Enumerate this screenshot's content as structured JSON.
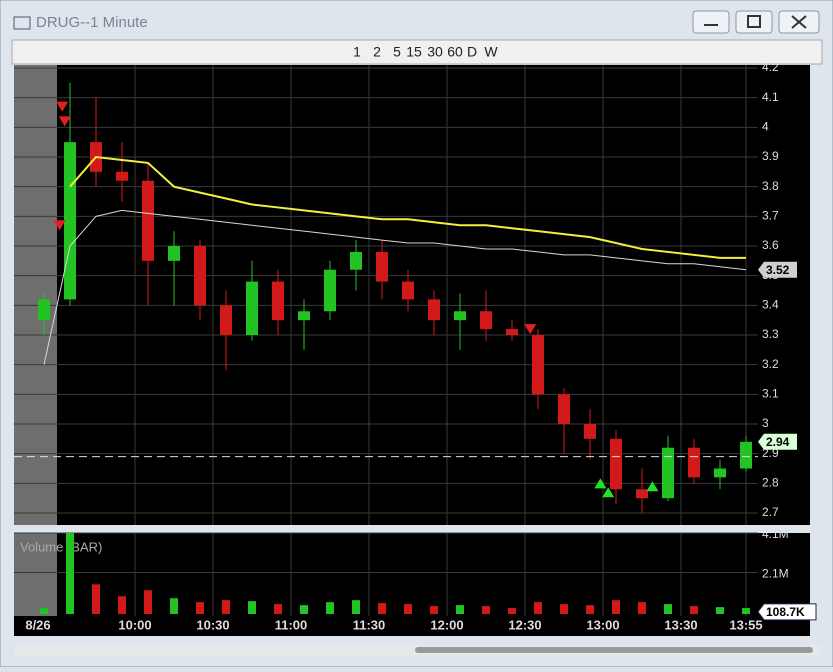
{
  "window": {
    "title": "DRUG--1 Minute"
  },
  "toolbar": {
    "periods": [
      "1",
      "2",
      "5",
      "15",
      "30",
      "60",
      "D",
      "W"
    ]
  },
  "chart": {
    "type": "candlestick",
    "x": [
      "9:20",
      "9:30",
      "9:40",
      "9:50",
      "10:00",
      "10:10",
      "10:20",
      "10:30",
      "10:40",
      "10:50",
      "11:00",
      "11:10",
      "11:20",
      "11:30",
      "11:40",
      "11:50",
      "12:00",
      "12:10",
      "12:20",
      "12:30",
      "12:40",
      "12:50",
      "13:00",
      "13:10",
      "13:20",
      "13:30",
      "13:40",
      "13:50"
    ],
    "open": [
      3.35,
      3.42,
      3.95,
      3.85,
      3.82,
      3.55,
      3.6,
      3.4,
      3.3,
      3.48,
      3.35,
      3.38,
      3.52,
      3.58,
      3.48,
      3.42,
      3.35,
      3.38,
      3.32,
      3.3,
      3.1,
      3.0,
      2.95,
      2.78,
      2.75,
      2.92,
      2.82,
      2.85
    ],
    "high": [
      3.45,
      4.15,
      4.1,
      3.95,
      3.88,
      3.65,
      3.62,
      3.45,
      3.55,
      3.52,
      3.42,
      3.55,
      3.62,
      3.62,
      3.52,
      3.45,
      3.44,
      3.45,
      3.35,
      3.32,
      3.12,
      3.05,
      2.98,
      2.85,
      2.96,
      2.95,
      2.88,
      2.96
    ],
    "low": [
      3.3,
      3.4,
      3.8,
      3.75,
      3.4,
      3.4,
      3.35,
      3.18,
      3.28,
      3.3,
      3.25,
      3.35,
      3.45,
      3.42,
      3.38,
      3.3,
      3.25,
      3.28,
      3.28,
      3.05,
      2.9,
      2.88,
      2.73,
      2.7,
      2.74,
      2.8,
      2.78,
      2.84
    ],
    "close": [
      3.42,
      3.95,
      3.85,
      3.82,
      3.55,
      3.6,
      3.4,
      3.3,
      3.48,
      3.35,
      3.38,
      3.52,
      3.58,
      3.48,
      3.42,
      3.35,
      3.38,
      3.32,
      3.3,
      3.1,
      3.0,
      2.95,
      2.78,
      2.75,
      2.92,
      2.82,
      2.85,
      2.94
    ],
    "up_color": "#22c322",
    "down_color": "#d21a1a",
    "lines": [
      {
        "color": "#f0f040",
        "values": [
          null,
          3.8,
          3.9,
          3.89,
          3.88,
          3.8,
          3.78,
          3.76,
          3.74,
          3.73,
          3.72,
          3.71,
          3.7,
          3.69,
          3.69,
          3.68,
          3.67,
          3.67,
          3.66,
          3.65,
          3.64,
          3.63,
          3.61,
          3.59,
          3.58,
          3.57,
          3.56,
          3.56
        ]
      },
      {
        "color": "#d8d8d8",
        "values": [
          3.2,
          3.6,
          3.7,
          3.72,
          3.71,
          3.7,
          3.69,
          3.68,
          3.67,
          3.66,
          3.65,
          3.64,
          3.63,
          3.62,
          3.61,
          3.61,
          3.6,
          3.59,
          3.59,
          3.58,
          3.57,
          3.57,
          3.56,
          3.55,
          3.54,
          3.54,
          3.53,
          3.52
        ]
      }
    ],
    "sell_signals": [
      {
        "x": "9:31",
        "price": 3.67
      },
      {
        "x": "9:32",
        "price": 4.07
      },
      {
        "x": "9:33",
        "price": 4.02
      },
      {
        "x": "12:32",
        "price": 3.32
      }
    ],
    "buy_signals": [
      {
        "x": "12:59",
        "price": 2.8
      },
      {
        "x": "13:02",
        "price": 2.77
      },
      {
        "x": "13:19",
        "price": 2.79
      }
    ],
    "ylim": [
      2.7,
      4.2
    ],
    "yticks": [
      4.2,
      4.1,
      4,
      3.9,
      3.8,
      3.7,
      3.6,
      3.5,
      3.4,
      3.3,
      3.2,
      3.1,
      3,
      2.9,
      2.8,
      2.7
    ],
    "price_labels": [
      3.52,
      2.94
    ],
    "dashed_level": 2.89,
    "volume_title": "Volume (BAR)",
    "volume": [
      300000,
      4100000,
      1500000,
      900000,
      1200000,
      800000,
      600000,
      700000,
      650000,
      500000,
      450000,
      600000,
      700000,
      550000,
      500000,
      400000,
      450000,
      400000,
      300000,
      600000,
      500000,
      450000,
      700000,
      600000,
      500000,
      400000,
      350000,
      300000
    ],
    "vlim": [
      0,
      4100000
    ],
    "vticks": [
      {
        "value": 4100000,
        "label": "4.1M"
      },
      {
        "value": 2100000,
        "label": "2.1M"
      }
    ],
    "last_volume": {
      "value": 108700,
      "label": "108.7K"
    },
    "date_label": "8/26",
    "time_ticks": [
      "10:00",
      "10:30",
      "11:00",
      "11:30",
      "12:00",
      "12:30",
      "13:00",
      "13:30",
      "13:55"
    ]
  }
}
